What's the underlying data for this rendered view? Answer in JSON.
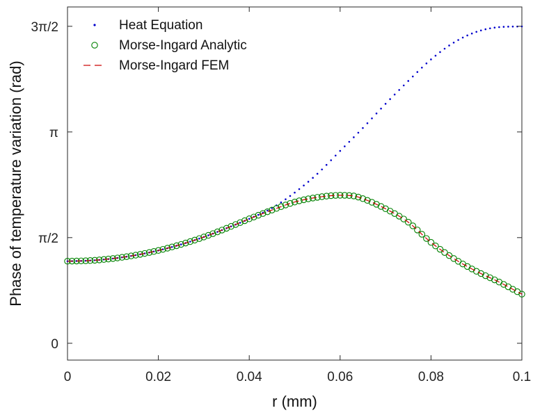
{
  "chart_data": {
    "type": "line",
    "title": "",
    "xlabel": "r (mm)",
    "ylabel": "Phase of temperature variation (rad)",
    "xlim": [
      0,
      0.1
    ],
    "ylim": [
      -0.25,
      5.0
    ],
    "x_ticks": [
      {
        "value": 0,
        "label": "0"
      },
      {
        "value": 0.02,
        "label": "0.02"
      },
      {
        "value": 0.04,
        "label": "0.04"
      },
      {
        "value": 0.06,
        "label": "0.06"
      },
      {
        "value": 0.08,
        "label": "0.08"
      },
      {
        "value": 0.1,
        "label": "0.1"
      }
    ],
    "y_ticks": [
      {
        "value": 0,
        "label": "0"
      },
      {
        "value": 1.5708,
        "label": "π/2"
      },
      {
        "value": 3.1416,
        "label": "π"
      },
      {
        "value": 4.7124,
        "label": "3π/2"
      }
    ],
    "grid": false,
    "legend_position": "top-left",
    "series": [
      {
        "name": "Heat Equation",
        "style": "dots",
        "color": "#0000cc",
        "x": [
          0,
          0.005,
          0.01,
          0.015,
          0.02,
          0.025,
          0.03,
          0.035,
          0.04,
          0.045,
          0.05,
          0.055,
          0.06,
          0.065,
          0.07,
          0.075,
          0.08,
          0.085,
          0.09,
          0.095,
          0.1
        ],
        "y": [
          1.22,
          1.23,
          1.26,
          1.31,
          1.38,
          1.47,
          1.58,
          1.71,
          1.85,
          2.01,
          2.24,
          2.52,
          2.86,
          3.2,
          3.56,
          3.9,
          4.22,
          4.47,
          4.63,
          4.7,
          4.71
        ]
      },
      {
        "name": "Morse-Ingard Analytic",
        "style": "circles",
        "color": "#008000",
        "x": [
          0,
          0.005,
          0.01,
          0.015,
          0.02,
          0.025,
          0.03,
          0.035,
          0.04,
          0.045,
          0.05,
          0.055,
          0.06,
          0.063,
          0.065,
          0.07,
          0.075,
          0.08,
          0.085,
          0.09,
          0.095,
          0.1
        ],
        "y": [
          1.22,
          1.23,
          1.26,
          1.31,
          1.38,
          1.47,
          1.58,
          1.71,
          1.85,
          1.98,
          2.1,
          2.17,
          2.2,
          2.19,
          2.15,
          2.0,
          1.8,
          1.5,
          1.26,
          1.07,
          0.91,
          0.73
        ]
      },
      {
        "name": "Morse-Ingard FEM",
        "style": "dashed",
        "color": "#cc0000",
        "x": [
          0,
          0.005,
          0.01,
          0.015,
          0.02,
          0.025,
          0.03,
          0.035,
          0.04,
          0.045,
          0.05,
          0.055,
          0.06,
          0.063,
          0.065,
          0.07,
          0.075,
          0.08,
          0.085,
          0.09,
          0.095,
          0.1
        ],
        "y": [
          1.22,
          1.23,
          1.26,
          1.31,
          1.38,
          1.47,
          1.58,
          1.71,
          1.85,
          1.98,
          2.1,
          2.17,
          2.2,
          2.19,
          2.15,
          2.0,
          1.8,
          1.5,
          1.26,
          1.07,
          0.91,
          0.73
        ]
      }
    ]
  }
}
